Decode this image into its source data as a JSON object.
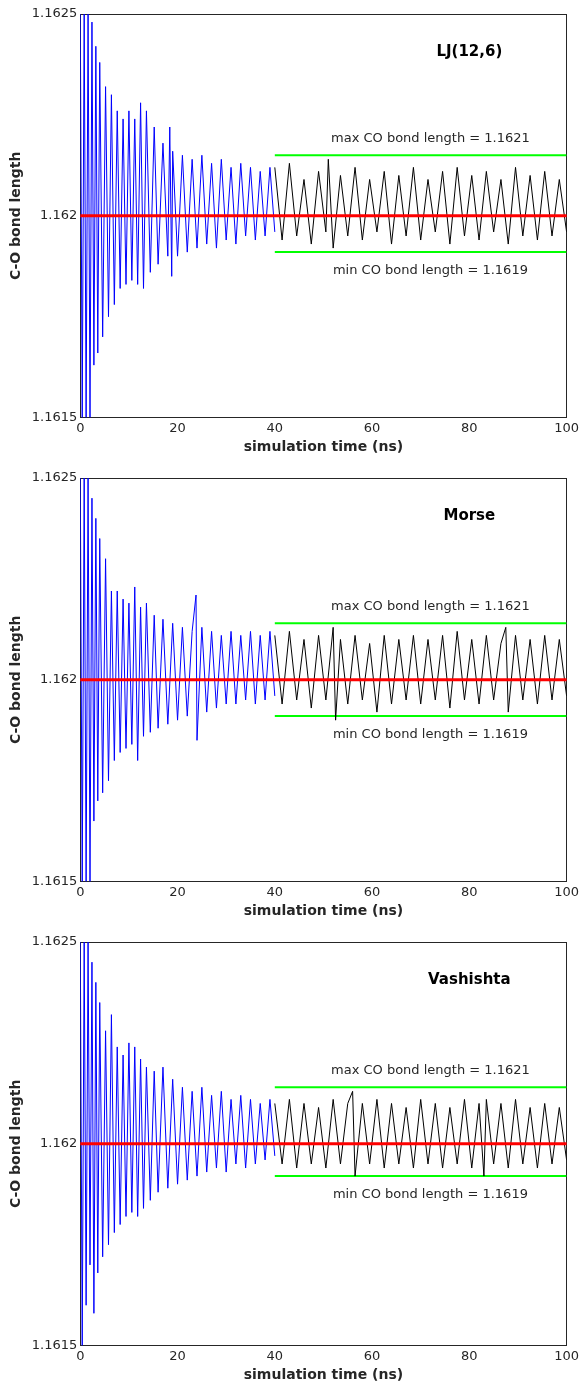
{
  "chart_data": [
    {
      "type": "line",
      "title": "LJ(12,6)",
      "xlabel": "simulation time (ns)",
      "ylabel": "C-O bond length",
      "xlim": [
        0,
        100
      ],
      "xticks": [
        0,
        20,
        40,
        60,
        80,
        100
      ],
      "ylim": [
        1.1615,
        1.1625
      ],
      "yticks": [
        1.1615,
        1.162,
        1.1625
      ],
      "marker": "none",
      "legend": false,
      "series": [
        {
          "color": "#0000ff",
          "x": [
            0,
            0.4,
            0.8,
            1.2,
            1.6,
            2,
            2.4,
            2.8,
            3.2,
            3.6,
            4,
            4.6,
            5.2,
            5.8,
            6.4,
            7,
            7.6,
            8.2,
            8.8,
            9.4,
            10,
            10.6,
            11.2,
            11.8,
            12.4,
            13,
            13.6,
            14.4,
            15.2,
            16,
            17,
            18,
            18.4,
            18.8,
            19,
            20,
            21,
            22,
            23,
            24,
            25,
            26,
            27,
            28,
            29,
            30,
            31,
            32,
            33,
            34,
            35,
            36,
            37,
            38,
            39,
            40
          ],
          "values": [
            1.1625,
            1.1615,
            1.1625,
            1.1615,
            1.1625,
            1.1615,
            1.16248,
            1.16163,
            1.16242,
            1.16166,
            1.16238,
            1.1617,
            1.16232,
            1.16175,
            1.1623,
            1.16178,
            1.16226,
            1.16182,
            1.16224,
            1.16183,
            1.16226,
            1.16184,
            1.16224,
            1.16183,
            1.16228,
            1.16182,
            1.16226,
            1.16186,
            1.16222,
            1.16188,
            1.16218,
            1.1619,
            1.16222,
            1.16185,
            1.16216,
            1.1619,
            1.16215,
            1.16191,
            1.16214,
            1.16192,
            1.16215,
            1.16193,
            1.16213,
            1.16192,
            1.16214,
            1.16194,
            1.16212,
            1.16193,
            1.16213,
            1.16195,
            1.16212,
            1.16194,
            1.16211,
            1.16195,
            1.16212,
            1.16196
          ]
        },
        {
          "color": "#000000",
          "x": [
            40,
            41.5,
            43,
            44.5,
            46,
            47.5,
            49,
            50.5,
            51,
            52,
            53.5,
            55,
            56.5,
            58,
            59.5,
            61,
            62.5,
            64,
            65.5,
            67,
            68.5,
            70,
            71.5,
            73,
            74.5,
            76,
            77.5,
            79,
            80.5,
            82,
            83.5,
            85,
            86.5,
            88,
            89.5,
            91,
            92.5,
            94,
            95.5,
            97,
            98.5,
            100
          ],
          "values": [
            1.16212,
            1.16194,
            1.16213,
            1.16195,
            1.16209,
            1.16193,
            1.16211,
            1.16196,
            1.16214,
            1.16192,
            1.1621,
            1.16195,
            1.16212,
            1.16194,
            1.16209,
            1.16196,
            1.16211,
            1.16193,
            1.1621,
            1.16195,
            1.16212,
            1.16194,
            1.16209,
            1.16196,
            1.16211,
            1.16193,
            1.16212,
            1.16195,
            1.1621,
            1.16194,
            1.16211,
            1.16196,
            1.16209,
            1.16193,
            1.16212,
            1.16195,
            1.1621,
            1.16194,
            1.16211,
            1.16195,
            1.16209,
            1.16196
          ]
        },
        {
          "color": "#00ff00",
          "x": [
            40,
            100
          ],
          "values": [
            1.16215,
            1.16215
          ]
        },
        {
          "color": "#00ff00",
          "x": [
            40,
            100
          ],
          "values": [
            1.16191,
            1.16191
          ]
        }
      ],
      "ref_lines": [
        {
          "axis": "y",
          "value": 1.162,
          "color": "#ff0000"
        }
      ],
      "annotations": [
        {
          "text": "max CO bond length = 1.1621",
          "y": 1.16215
        },
        {
          "text": "min CO bond length = 1.1619",
          "y": 1.16191
        }
      ]
    },
    {
      "type": "line",
      "title": "Morse",
      "xlabel": "simulation time (ns)",
      "ylabel": "C-O bond length",
      "xlim": [
        0,
        100
      ],
      "xticks": [
        0,
        20,
        40,
        60,
        80,
        100
      ],
      "ylim": [
        1.1615,
        1.1625
      ],
      "yticks": [
        1.1615,
        1.162,
        1.1625
      ],
      "marker": "none",
      "legend": false,
      "series": [
        {
          "color": "#0000ff",
          "x": [
            0,
            0.4,
            0.8,
            1.2,
            1.6,
            2,
            2.4,
            2.8,
            3.2,
            3.6,
            4,
            4.6,
            5.2,
            5.8,
            6.4,
            7,
            7.6,
            8.2,
            8.8,
            9.4,
            10,
            10.6,
            11.2,
            11.8,
            12.4,
            13,
            13.6,
            14.4,
            15.2,
            16,
            17,
            18,
            19,
            20,
            21,
            22,
            23,
            23.8,
            24,
            25,
            26,
            27,
            28,
            29,
            30,
            31,
            32,
            33,
            34,
            35,
            36,
            37,
            38,
            39,
            40
          ],
          "values": [
            1.1625,
            1.1615,
            1.1625,
            1.1615,
            1.1625,
            1.1615,
            1.16245,
            1.16165,
            1.1624,
            1.1617,
            1.16235,
            1.16172,
            1.1623,
            1.16175,
            1.16222,
            1.1618,
            1.16222,
            1.16182,
            1.1622,
            1.16183,
            1.16219,
            1.16184,
            1.16223,
            1.1618,
            1.16218,
            1.16186,
            1.16219,
            1.16187,
            1.16216,
            1.16188,
            1.16215,
            1.16189,
            1.16214,
            1.1619,
            1.16213,
            1.16191,
            1.16212,
            1.16221,
            1.16185,
            1.16213,
            1.16192,
            1.16212,
            1.16193,
            1.16211,
            1.16194,
            1.16212,
            1.16194,
            1.16211,
            1.16195,
            1.16212,
            1.16194,
            1.16211,
            1.16195,
            1.16212,
            1.16196
          ]
        },
        {
          "color": "#000000",
          "x": [
            40,
            41.5,
            43,
            44.5,
            46,
            47.5,
            49,
            50.5,
            52,
            52.5,
            53.5,
            55,
            56.5,
            58,
            59.5,
            61,
            62.5,
            64,
            65.5,
            67,
            68.5,
            70,
            71.5,
            73,
            74.5,
            76,
            77.5,
            79,
            80.5,
            82,
            83.5,
            85,
            86.5,
            87.5,
            88,
            89.5,
            91,
            92.5,
            94,
            95.5,
            97,
            98.5,
            100
          ],
          "values": [
            1.16211,
            1.16194,
            1.16212,
            1.16195,
            1.1621,
            1.16193,
            1.16211,
            1.16195,
            1.16213,
            1.1619,
            1.1621,
            1.16194,
            1.16211,
            1.16195,
            1.16209,
            1.16192,
            1.16211,
            1.16194,
            1.1621,
            1.16195,
            1.16211,
            1.16194,
            1.1621,
            1.16195,
            1.16211,
            1.16193,
            1.16212,
            1.16195,
            1.1621,
            1.16194,
            1.16211,
            1.16195,
            1.16209,
            1.16213,
            1.16192,
            1.16211,
            1.16195,
            1.1621,
            1.16194,
            1.16211,
            1.16195,
            1.1621,
            1.16196
          ]
        },
        {
          "color": "#00ff00",
          "x": [
            40,
            100
          ],
          "values": [
            1.16214,
            1.16214
          ]
        },
        {
          "color": "#00ff00",
          "x": [
            40,
            100
          ],
          "values": [
            1.16191,
            1.16191
          ]
        }
      ],
      "ref_lines": [
        {
          "axis": "y",
          "value": 1.162,
          "color": "#ff0000"
        }
      ],
      "annotations": [
        {
          "text": "max CO bond length = 1.1621",
          "y": 1.16214
        },
        {
          "text": "min CO bond length = 1.1619",
          "y": 1.16191
        }
      ]
    },
    {
      "type": "line",
      "title": "Vashishta",
      "xlabel": "simulation time (ns)",
      "ylabel": "C-O bond length",
      "xlim": [
        0,
        100
      ],
      "xticks": [
        0,
        20,
        40,
        60,
        80,
        100
      ],
      "ylim": [
        1.1615,
        1.1625
      ],
      "yticks": [
        1.1615,
        1.162,
        1.1625
      ],
      "marker": "none",
      "legend": false,
      "series": [
        {
          "color": "#0000ff",
          "x": [
            0,
            0.4,
            0.8,
            1.2,
            1.6,
            2,
            2.4,
            2.8,
            3.2,
            3.6,
            4,
            4.6,
            5.2,
            5.8,
            6.4,
            7,
            7.6,
            8.2,
            8.8,
            9.4,
            10,
            10.6,
            11.2,
            11.8,
            12.4,
            13,
            13.6,
            14.4,
            15.2,
            16,
            17,
            18,
            19,
            20,
            21,
            22,
            23,
            24,
            25,
            26,
            27,
            28,
            29,
            30,
            31,
            32,
            33,
            34,
            35,
            36,
            37,
            38,
            39,
            40
          ],
          "values": [
            1.1625,
            1.1615,
            1.1625,
            1.1616,
            1.1625,
            1.1617,
            1.16245,
            1.16158,
            1.1624,
            1.16168,
            1.16235,
            1.16172,
            1.16228,
            1.16175,
            1.16232,
            1.16178,
            1.16224,
            1.1618,
            1.16222,
            1.16182,
            1.16225,
            1.16183,
            1.16224,
            1.16182,
            1.16221,
            1.16184,
            1.16219,
            1.16186,
            1.16218,
            1.16188,
            1.16219,
            1.16189,
            1.16216,
            1.1619,
            1.16214,
            1.16191,
            1.16213,
            1.16192,
            1.16214,
            1.16193,
            1.16212,
            1.16194,
            1.16213,
            1.16193,
            1.16211,
            1.16195,
            1.16212,
            1.16194,
            1.16211,
            1.16195,
            1.1621,
            1.16196,
            1.16211,
            1.16197
          ]
        },
        {
          "color": "#000000",
          "x": [
            40,
            41.5,
            43,
            44.5,
            46,
            47.5,
            49,
            50.5,
            52,
            53.5,
            55,
            56,
            56.5,
            58,
            59.5,
            61,
            62.5,
            64,
            65.5,
            67,
            68.5,
            70,
            71.5,
            73,
            74.5,
            76,
            77.5,
            79,
            80.5,
            82,
            83,
            83.5,
            85,
            86.5,
            88,
            89.5,
            91,
            92.5,
            94,
            95.5,
            97,
            98.5,
            100
          ],
          "values": [
            1.1621,
            1.16195,
            1.16211,
            1.16194,
            1.1621,
            1.16195,
            1.16209,
            1.16194,
            1.16211,
            1.16195,
            1.1621,
            1.16213,
            1.16192,
            1.1621,
            1.16195,
            1.16211,
            1.16194,
            1.1621,
            1.16195,
            1.16209,
            1.16194,
            1.16211,
            1.16195,
            1.1621,
            1.16194,
            1.16209,
            1.16195,
            1.16211,
            1.16194,
            1.1621,
            1.16192,
            1.16211,
            1.16195,
            1.1621,
            1.16194,
            1.16211,
            1.16195,
            1.16209,
            1.16194,
            1.1621,
            1.16195,
            1.16209,
            1.16196
          ]
        },
        {
          "color": "#00ff00",
          "x": [
            40,
            100
          ],
          "values": [
            1.16214,
            1.16214
          ]
        },
        {
          "color": "#00ff00",
          "x": [
            40,
            100
          ],
          "values": [
            1.16192,
            1.16192
          ]
        }
      ],
      "ref_lines": [
        {
          "axis": "y",
          "value": 1.162,
          "color": "#ff0000"
        }
      ],
      "annotations": [
        {
          "text": "max CO bond length = 1.1621",
          "y": 1.16214
        },
        {
          "text": "min CO bond length = 1.1619",
          "y": 1.16192
        }
      ]
    }
  ]
}
